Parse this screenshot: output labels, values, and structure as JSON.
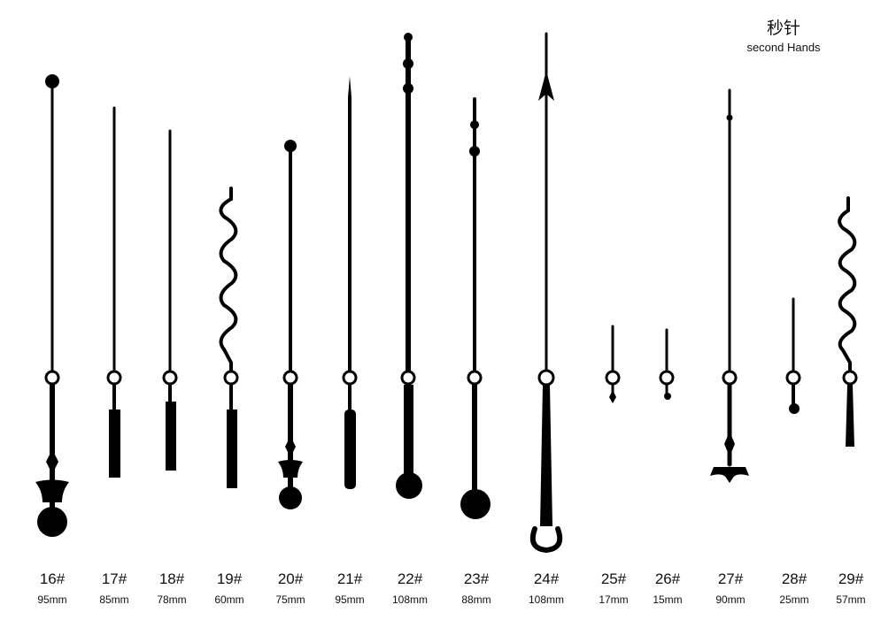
{
  "header": {
    "title": "秒针",
    "subtitle": "second Hands"
  },
  "items": [
    {
      "label": "16#",
      "length": "95mm"
    },
    {
      "label": "17#",
      "length": "85mm"
    },
    {
      "label": "18#",
      "length": "78mm"
    },
    {
      "label": "19#",
      "length": "60mm"
    },
    {
      "label": "20#",
      "length": "75mm"
    },
    {
      "label": "21#",
      "length": "95mm"
    },
    {
      "label": "22#",
      "length": "108mm"
    },
    {
      "label": "23#",
      "length": "88mm"
    },
    {
      "label": "24#",
      "length": "108mm"
    },
    {
      "label": "25#",
      "length": "17mm"
    },
    {
      "label": "26#",
      "length": "15mm"
    },
    {
      "label": "27#",
      "length": "90mm"
    },
    {
      "label": "28#",
      "length": "25mm"
    },
    {
      "label": "29#",
      "length": "57mm"
    }
  ]
}
